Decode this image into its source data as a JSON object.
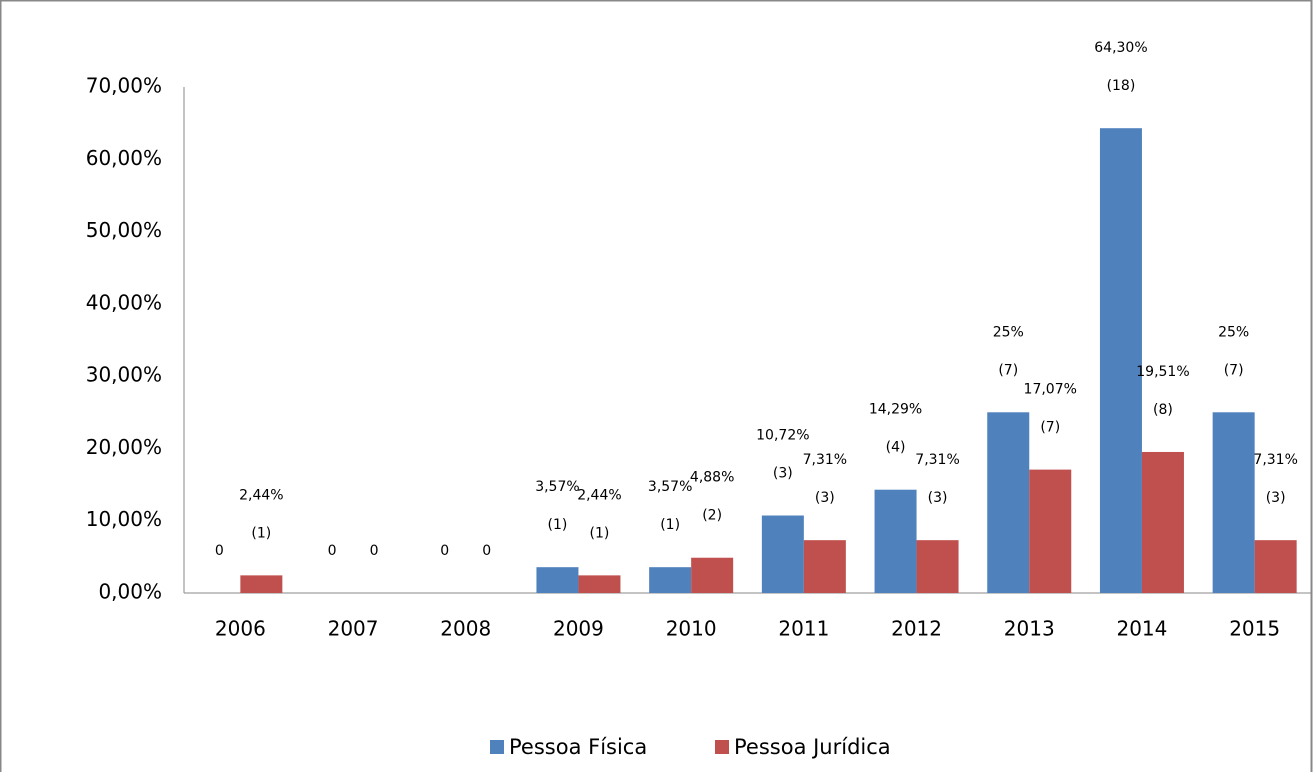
{
  "chart_data": {
    "type": "bar",
    "categories": [
      "2006",
      "2007",
      "2008",
      "2009",
      "2010",
      "2011",
      "2012",
      "2013",
      "2014",
      "2015"
    ],
    "series": [
      {
        "name": "Pessoa Física",
        "color": "#4f81bd",
        "values": [
          0,
          0,
          0,
          3.57,
          3.57,
          10.72,
          14.29,
          25,
          64.3,
          25
        ],
        "value_labels": [
          "0",
          "0",
          "0",
          "3,57%",
          "3,57%",
          "10,72%",
          "14,29%",
          "25%",
          "64,30%",
          "25%"
        ],
        "count_labels": [
          null,
          null,
          null,
          "(1)",
          "(1)",
          "(3)",
          "(4)",
          "(7)",
          "(18)",
          "(7)"
        ]
      },
      {
        "name": "Pessoa Jurídica",
        "color": "#c0504d",
        "values": [
          2.44,
          0,
          0,
          2.44,
          4.88,
          7.31,
          7.31,
          17.07,
          19.51,
          7.31
        ],
        "value_labels": [
          "2,44%",
          "0",
          "0",
          "2,44%",
          "4,88%",
          "7,31%",
          "7,31%",
          "17,07%",
          "19,51%",
          "7,31%"
        ],
        "count_labels": [
          "(1)",
          null,
          null,
          "(1)",
          "(2)",
          "(3)",
          "(3)",
          "(7)",
          "(8)",
          "(3)"
        ]
      }
    ],
    "ylim": [
      0,
      70
    ],
    "yticks": [
      {
        "value": 0,
        "label": "0,00%"
      },
      {
        "value": 10,
        "label": "10,00%"
      },
      {
        "value": 20,
        "label": "20,00%"
      },
      {
        "value": 30,
        "label": "30,00%"
      },
      {
        "value": 40,
        "label": "40,00%"
      },
      {
        "value": 50,
        "label": "50,00%"
      },
      {
        "value": 60,
        "label": "60,00%"
      },
      {
        "value": 70,
        "label": "70,00%"
      }
    ],
    "grid": false,
    "legend": "bottom"
  }
}
